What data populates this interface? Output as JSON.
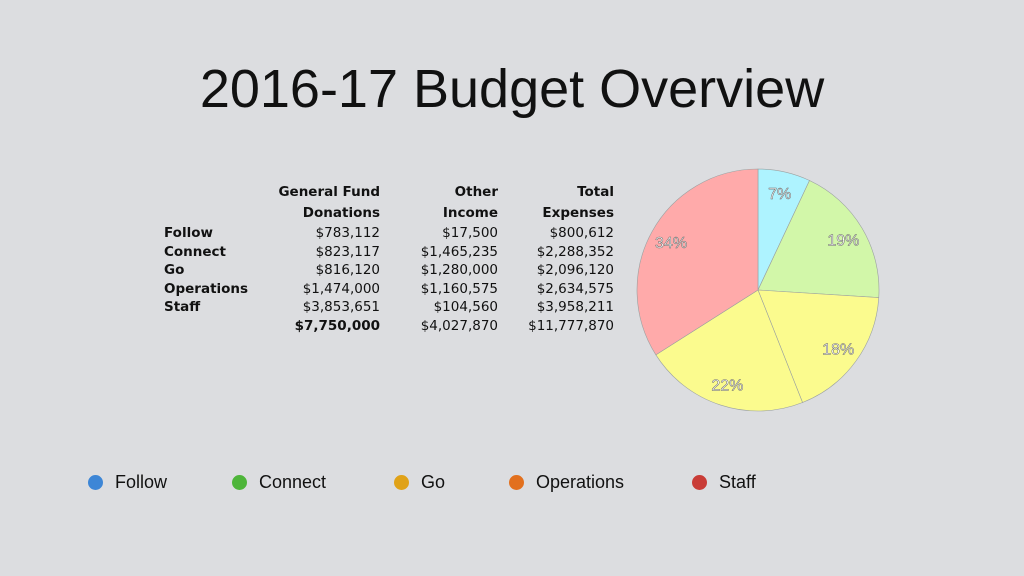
{
  "title": "2016-17 Budget Overview",
  "table": {
    "headers": [
      {
        "line1": "General Fund",
        "line2": "Donations"
      },
      {
        "line1": "Other",
        "line2": "Income"
      },
      {
        "line1": "Total",
        "line2": "Expenses"
      }
    ],
    "rows": [
      {
        "label": "Follow",
        "donations": "$783,112",
        "other": "$17,500",
        "total": "$800,612"
      },
      {
        "label": "Connect",
        "donations": "$823,117",
        "other": "$1,465,235",
        "total": "$2,288,352"
      },
      {
        "label": "Go",
        "donations": "$816,120",
        "other": "$1,280,000",
        "total": "$2,096,120"
      },
      {
        "label": "Operations",
        "donations": "$1,474,000",
        "other": "$1,160,575",
        "total": "$2,634,575"
      },
      {
        "label": "Staff",
        "donations": "$3,853,651",
        "other": "$104,560",
        "total": "$3,958,211"
      }
    ],
    "totals": {
      "donations": "$7,750,000",
      "other": "$4,027,870",
      "total": "$11,777,870"
    }
  },
  "chart_data": {
    "type": "pie",
    "slices": [
      {
        "value": 7,
        "label": "7%",
        "color": "#aef3ff"
      },
      {
        "value": 19,
        "label": "19%",
        "color": "#d2f7a9"
      },
      {
        "value": 18,
        "label": "18%",
        "color": "#fbfb8e"
      },
      {
        "value": 22,
        "label": "22%",
        "color": "#fbfb8e"
      },
      {
        "value": 34,
        "label": "34%",
        "color": "#ffaaaa"
      }
    ],
    "legend_position": "bottom"
  },
  "legend": [
    {
      "label": "Follow",
      "color": "#3d86d6"
    },
    {
      "label": "Connect",
      "color": "#4eb53a"
    },
    {
      "label": "Go",
      "color": "#e0a218"
    },
    {
      "label": "Operations",
      "color": "#e2701e"
    },
    {
      "label": "Staff",
      "color": "#c93c37"
    }
  ]
}
